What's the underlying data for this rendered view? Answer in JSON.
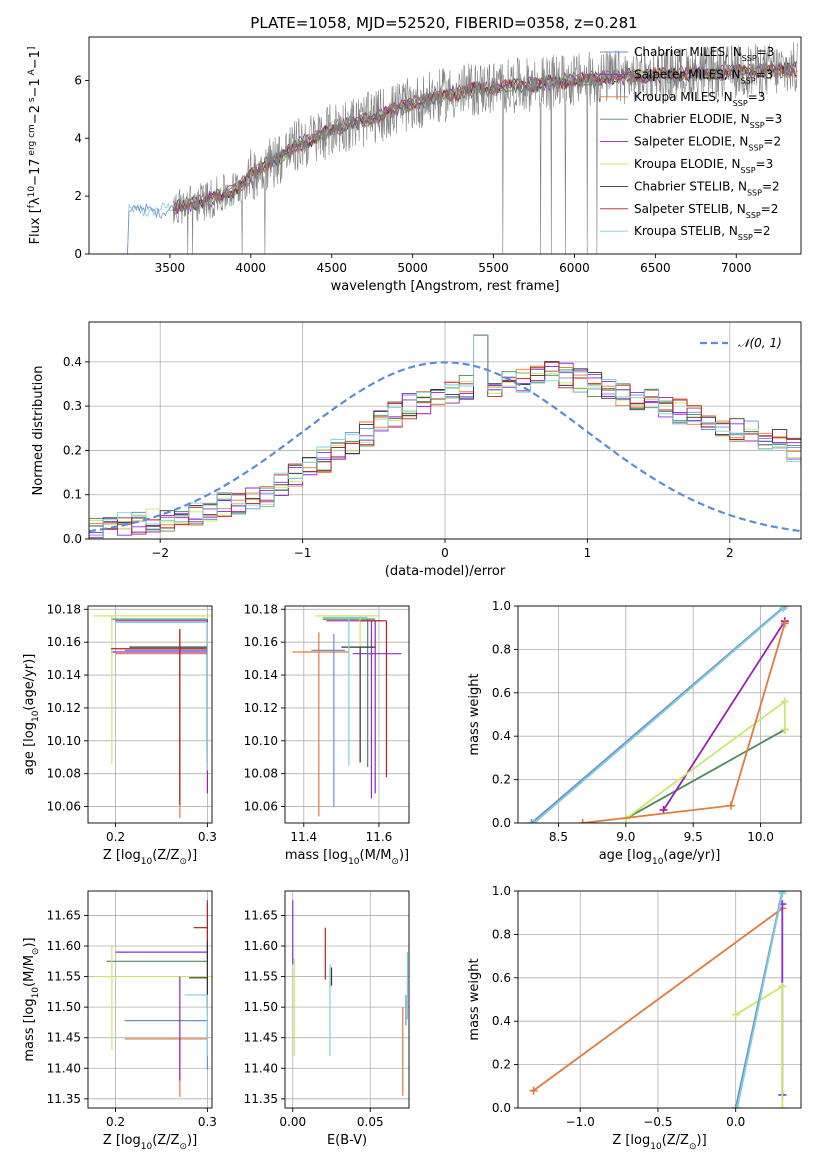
{
  "figure_title": "PLATE=1058, MJD=52520, FIBERID=0358, z=0.281",
  "colors": {
    "s0": "#6b8fd6",
    "s1": "#8a2be2",
    "s2": "#e07b39",
    "s3": "#4f8a5b",
    "s4": "#9b1fb0",
    "s5": "#c8e86a",
    "s6": "#333333",
    "s7": "#b22222",
    "s8": "#7ed0d6",
    "spectrum": "#808080",
    "gauss": "#5b8ed6"
  },
  "chart_data": [
    {
      "id": "spectrum",
      "type": "line",
      "title": "PLATE=1058, MJD=52520, FIBERID=0358, z=0.281",
      "xlabel": "wavelength [Angstrom, rest frame]",
      "ylabel_parts": [
        "Flux [",
        "f",
        "λ",
        "10",
        "−17",
        " erg cm",
        "−2",
        " s",
        "−1",
        " A",
        "−1",
        "]"
      ],
      "xlim": [
        3000,
        7400
      ],
      "ylim": [
        0,
        7.5
      ],
      "xticks": [
        "3500",
        "4000",
        "4500",
        "5000",
        "5500",
        "6000",
        "6500",
        "7000"
      ],
      "xtick_values": [
        3500,
        4000,
        4500,
        5000,
        5500,
        6000,
        6500,
        7000
      ],
      "yticks": [
        "0",
        "2",
        "4",
        "6"
      ],
      "ytick_values": [
        0,
        2,
        4,
        6
      ],
      "grid": false,
      "legend_position": "top-right",
      "legend": [
        {
          "label": "Chabrier MILES, N",
          "sub": "SSP",
          "suffix": "=3",
          "color": "#6b8fd6"
        },
        {
          "label": "Salpeter MILES, N",
          "sub": "SSP",
          "suffix": "=3",
          "color": "#8a2be2"
        },
        {
          "label": "Kroupa MILES, N",
          "sub": "SSP",
          "suffix": "=3",
          "color": "#e07b39"
        },
        {
          "label": "Chabrier ELODIE, N",
          "sub": "SSP",
          "suffix": "=3",
          "color": "#4f8a5b"
        },
        {
          "label": "Salpeter ELODIE, N",
          "sub": "SSP",
          "suffix": "=2",
          "color": "#9b1fb0"
        },
        {
          "label": "Kroupa ELODIE, N",
          "sub": "SSP",
          "suffix": "=3",
          "color": "#c8e86a"
        },
        {
          "label": "Chabrier STELIB, N",
          "sub": "SSP",
          "suffix": "=2",
          "color": "#333333"
        },
        {
          "label": "Salpeter STELIB, N",
          "sub": "SSP",
          "suffix": "=2",
          "color": "#b22222"
        },
        {
          "label": "Kroupa STELIB, N",
          "sub": "SSP",
          "suffix": "=2",
          "color": "#7ed0d6"
        }
      ],
      "trend": {
        "x": [
          3200,
          3250,
          3300,
          3400,
          3500,
          3600,
          3700,
          3800,
          3900,
          4000,
          4100,
          4200,
          4300,
          4400,
          4500,
          4600,
          4700,
          4800,
          4900,
          5000,
          5200,
          5400,
          5600,
          5800,
          6000,
          6200,
          6400,
          6600,
          6800,
          7000,
          7200,
          7400
        ],
        "y": [
          1.3,
          1.4,
          1.5,
          1.55,
          1.5,
          1.7,
          1.8,
          2.0,
          2.2,
          2.7,
          3.1,
          3.4,
          3.8,
          4.0,
          4.3,
          4.5,
          4.6,
          4.8,
          5.0,
          5.2,
          5.5,
          5.7,
          5.8,
          5.9,
          6.0,
          6.1,
          6.15,
          6.2,
          6.25,
          6.3,
          6.35,
          6.4
        ]
      }
    },
    {
      "id": "residuals",
      "type": "histogram",
      "xlabel": "(data-model)/error",
      "ylabel": "Normed distribution",
      "xlim": [
        -2.5,
        2.5
      ],
      "ylim": [
        0,
        0.49
      ],
      "xticks": [
        "−2",
        "−1",
        "0",
        "1",
        "2"
      ],
      "xtick_values": [
        -2,
        -1,
        0,
        1,
        2
      ],
      "yticks": [
        "0.0",
        "0.1",
        "0.2",
        "0.3",
        "0.4"
      ],
      "ytick_values": [
        0,
        0.1,
        0.2,
        0.3,
        0.4
      ],
      "grid": true,
      "legend_position": "top-right",
      "gauss_label": "𝒩(0, 1)",
      "bin_width": 0.1,
      "bin_start": -2.5,
      "base_heights": [
        0.02,
        0.025,
        0.03,
        0.035,
        0.04,
        0.045,
        0.05,
        0.06,
        0.07,
        0.08,
        0.085,
        0.09,
        0.1,
        0.12,
        0.14,
        0.16,
        0.18,
        0.2,
        0.22,
        0.24,
        0.26,
        0.28,
        0.3,
        0.31,
        0.32,
        0.33,
        0.34,
        0.35,
        0.35,
        0.36,
        0.36,
        0.37,
        0.38,
        0.37,
        0.36,
        0.35,
        0.34,
        0.33,
        0.32,
        0.31,
        0.3,
        0.29,
        0.28,
        0.27,
        0.26,
        0.25,
        0.24,
        0.23,
        0.22,
        0.2,
        0.19,
        0.18,
        0.17,
        0.16,
        0.15,
        0.14,
        0.13,
        0.12,
        0.11,
        0.1,
        0.095,
        0.09,
        0.085,
        0.08,
        0.075,
        0.07,
        0.065,
        0.06,
        0.055,
        0.05
      ]
    },
    {
      "id": "age-vs-Z",
      "type": "errorbar",
      "xlabel_parts": [
        "Z [log",
        "10",
        "(Z/Z",
        "⊙",
        ")]"
      ],
      "ylabel_parts": [
        "age  [log",
        "10",
        "(age/yr)]"
      ],
      "xlim": [
        0.17,
        0.305
      ],
      "ylim": [
        10.05,
        10.182
      ],
      "xticks": [
        "0.2",
        "0.3"
      ],
      "xtick_values": [
        0.2,
        0.3
      ],
      "yticks": [
        "10.06",
        "10.08",
        "10.10",
        "10.12",
        "10.14",
        "10.16",
        "10.18"
      ],
      "ytick_values": [
        10.06,
        10.08,
        10.1,
        10.12,
        10.14,
        10.16,
        10.18
      ],
      "grid": true,
      "points": [
        {
          "x": 0.3,
          "y": 10.155,
          "xerr": [
            0.09,
            0.0
          ],
          "yerr": [
            0.06,
            0.0
          ],
          "c": "s0"
        },
        {
          "x": 0.27,
          "y": 10.154,
          "xerr": [
            0.075,
            0.03
          ],
          "yerr": [
            0.09,
            0.012
          ],
          "c": "s1"
        },
        {
          "x": 0.27,
          "y": 10.153,
          "xerr": [
            0.07,
            0.03
          ],
          "yerr": [
            0.1,
            0.015
          ],
          "c": "s2"
        },
        {
          "x": 0.3,
          "y": 10.174,
          "xerr": [
            0.105,
            0.0
          ],
          "yerr": [
            0.08,
            0.0
          ],
          "c": "s3"
        },
        {
          "x": 0.3,
          "y": 10.173,
          "xerr": [
            0.1,
            0.0
          ],
          "yerr": [
            0.105,
            0.0
          ],
          "c": "s4"
        },
        {
          "x": 0.196,
          "y": 10.176,
          "xerr": [
            0.02,
            0.11
          ],
          "yerr": [
            0.09,
            0.0
          ],
          "c": "s5"
        },
        {
          "x": 0.3,
          "y": 10.157,
          "xerr": [
            0.085,
            0.0
          ],
          "yerr": [
            0.07,
            0.0
          ],
          "c": "s6"
        },
        {
          "x": 0.27,
          "y": 10.156,
          "xerr": [
            0.075,
            0.03
          ],
          "yerr": [
            0.095,
            0.012
          ],
          "c": "s7"
        },
        {
          "x": 0.3,
          "y": 10.172,
          "xerr": [
            0.1,
            0.0
          ],
          "yerr": [
            0.09,
            0.0
          ],
          "c": "s8"
        }
      ]
    },
    {
      "id": "age-vs-mass",
      "type": "errorbar",
      "xlabel_parts": [
        "mass [log",
        "10",
        "(M/M",
        "⊙",
        ")]"
      ],
      "xlim": [
        11.35,
        11.68
      ],
      "ylim": [
        10.05,
        10.182
      ],
      "xticks": [
        "11.4",
        "11.6"
      ],
      "xtick_values": [
        11.4,
        11.6
      ],
      "yticks": [
        "10.06",
        "10.08",
        "10.10",
        "10.12",
        "10.14",
        "10.16",
        "10.18"
      ],
      "ytick_values": [
        10.06,
        10.08,
        10.1,
        10.12,
        10.14,
        10.16,
        10.18
      ],
      "grid": true,
      "points": [
        {
          "x": 11.48,
          "y": 10.155,
          "xerr": [
            0.06,
            0.03
          ],
          "yerr": [
            0.095,
            0.01
          ],
          "c": "s0"
        },
        {
          "x": 11.58,
          "y": 10.153,
          "xerr": [
            0.05,
            0.08
          ],
          "yerr": [
            0.088,
            0.02
          ],
          "c": "s1"
        },
        {
          "x": 11.44,
          "y": 10.154,
          "xerr": [
            0.07,
            0.08
          ],
          "yerr": [
            0.1,
            0.012
          ],
          "c": "s2"
        },
        {
          "x": 11.57,
          "y": 10.174,
          "xerr": [
            0.12,
            0.02
          ],
          "yerr": [
            0.09,
            0.0
          ],
          "c": "s3"
        },
        {
          "x": 11.59,
          "y": 10.173,
          "xerr": [
            0.13,
            0.02
          ],
          "yerr": [
            0.105,
            0.0
          ],
          "c": "s4"
        },
        {
          "x": 11.55,
          "y": 10.176,
          "xerr": [
            0.12,
            0.05
          ],
          "yerr": [
            0.09,
            0.0
          ],
          "c": "s5"
        },
        {
          "x": 11.55,
          "y": 10.157,
          "xerr": [
            0.05,
            0.04
          ],
          "yerr": [
            0.07,
            0.0
          ],
          "c": "s6"
        },
        {
          "x": 11.62,
          "y": 10.173,
          "xerr": [
            0.07,
            0.0
          ],
          "yerr": [
            0.095,
            0.0
          ],
          "c": "s7"
        },
        {
          "x": 11.52,
          "y": 10.175,
          "xerr": [
            0.07,
            0.05
          ],
          "yerr": [
            0.09,
            0.0
          ],
          "c": "s8"
        }
      ]
    },
    {
      "id": "weight-vs-age",
      "type": "line",
      "xlabel_parts": [
        "age  [log",
        "10",
        "(age/yr)]"
      ],
      "ylabel": "mass weight",
      "xlim": [
        8.2,
        10.3
      ],
      "ylim": [
        0,
        1.0
      ],
      "xticks": [
        "8.5",
        "9.0",
        "9.5",
        "10.0"
      ],
      "xtick_values": [
        8.5,
        9.0,
        9.5,
        10.0
      ],
      "yticks": [
        "0.0",
        "0.2",
        "0.4",
        "0.6",
        "0.8",
        "1.0"
      ],
      "ytick_values": [
        0,
        0.2,
        0.4,
        0.6,
        0.8,
        1.0
      ],
      "grid": true,
      "series": [
        {
          "c": "s0",
          "x": [
            8.3,
            10.18
          ],
          "y": [
            0.0,
            1.0
          ]
        },
        {
          "c": "s3",
          "x": [
            9.0,
            10.18
          ],
          "y": [
            0.02,
            0.43
          ]
        },
        {
          "c": "s4",
          "x": [
            9.28,
            10.18
          ],
          "y": [
            0.06,
            0.93
          ]
        },
        {
          "c": "s5",
          "x": [
            9.0,
            10.18,
            10.18
          ],
          "y": [
            0.02,
            0.56,
            0.43
          ]
        },
        {
          "c": "s2",
          "x": [
            8.68,
            9.78,
            10.18
          ],
          "y": [
            0.0,
            0.08,
            0.92
          ]
        },
        {
          "c": "s8",
          "x": [
            8.32,
            10.17
          ],
          "y": [
            0.0,
            0.99
          ]
        }
      ]
    },
    {
      "id": "mass-vs-Z",
      "type": "errorbar",
      "xlabel_parts": [
        "Z [log",
        "10",
        "(Z/Z",
        "⊙",
        ")]"
      ],
      "ylabel_parts": [
        "mass [log",
        "10",
        "(M/M",
        "⊙",
        ")]"
      ],
      "xlim": [
        0.17,
        0.305
      ],
      "ylim": [
        11.335,
        11.69
      ],
      "xticks": [
        "0.2",
        "0.3"
      ],
      "xtick_values": [
        0.2,
        0.3
      ],
      "yticks": [
        "11.35",
        "11.40",
        "11.45",
        "11.50",
        "11.55",
        "11.60",
        "11.65"
      ],
      "ytick_values": [
        11.35,
        11.4,
        11.45,
        11.5,
        11.55,
        11.6,
        11.65
      ],
      "grid": true,
      "points": [
        {
          "x": 0.3,
          "y": 11.478,
          "xerr": [
            0.09,
            0.0
          ],
          "yerr": [
            0.08,
            0.0
          ],
          "c": "s0"
        },
        {
          "x": 0.3,
          "y": 11.59,
          "xerr": [
            0.1,
            0.0
          ],
          "yerr": [
            0.01,
            0.085
          ],
          "c": "s1"
        },
        {
          "x": 0.27,
          "y": 11.448,
          "xerr": [
            0.06,
            0.03
          ],
          "yerr": [
            0.095,
            0.0
          ],
          "c": "s2"
        },
        {
          "x": 0.3,
          "y": 11.575,
          "xerr": [
            0.11,
            0.0
          ],
          "yerr": [
            0.09,
            0.0
          ],
          "c": "s3"
        },
        {
          "x": 0.3,
          "y": 11.63,
          "xerr": [
            0.015,
            0.0
          ],
          "yerr": [
            0.05,
            0.04
          ],
          "c": "s7"
        },
        {
          "x": 0.196,
          "y": 11.55,
          "xerr": [
            0.02,
            0.11
          ],
          "yerr": [
            0.12,
            0.05
          ],
          "c": "s5"
        },
        {
          "x": 0.3,
          "y": 11.548,
          "xerr": [
            0.02,
            0.0
          ],
          "yerr": [
            0.05,
            0.06
          ],
          "c": "s6"
        },
        {
          "x": 0.3,
          "y": 11.52,
          "xerr": [
            0.025,
            0.0
          ],
          "yerr": [
            0.1,
            0.0
          ],
          "c": "s8"
        },
        {
          "x": 0.27,
          "y": 11.5,
          "xerr": [
            0.0,
            0.0
          ],
          "yerr": [
            0.12,
            0.05
          ],
          "c": "s4"
        }
      ]
    },
    {
      "id": "mass-vs-EBV",
      "type": "errorbar",
      "xlabel": "E(B-V)",
      "xlim": [
        -0.005,
        0.075
      ],
      "ylim": [
        11.335,
        11.69
      ],
      "xticks": [
        "0.00",
        "0.05"
      ],
      "xtick_values": [
        0.0,
        0.05
      ],
      "yticks": [
        "11.35",
        "11.40",
        "11.45",
        "11.50",
        "11.55",
        "11.60",
        "11.65"
      ],
      "ytick_values": [
        11.35,
        11.4,
        11.45,
        11.5,
        11.55,
        11.6,
        11.65
      ],
      "grid": true,
      "points": [
        {
          "x": 0.0,
          "y": 11.6,
          "xerr": [
            0,
            0
          ],
          "yerr": [
            0.03,
            0.075
          ],
          "c": "s1"
        },
        {
          "x": 0.001,
          "y": 11.5,
          "xerr": [
            0,
            0
          ],
          "yerr": [
            0.08,
            0.08
          ],
          "c": "s5"
        },
        {
          "x": 0.021,
          "y": 11.575,
          "xerr": [
            0,
            0
          ],
          "yerr": [
            0.03,
            0.055
          ],
          "c": "s7"
        },
        {
          "x": 0.024,
          "y": 11.55,
          "xerr": [
            0,
            0
          ],
          "yerr": [
            0.13,
            0.02
          ],
          "c": "s8"
        },
        {
          "x": 0.025,
          "y": 11.545,
          "xerr": [
            0,
            0
          ],
          "yerr": [
            0.01,
            0.02
          ],
          "c": "s6"
        },
        {
          "x": 0.071,
          "y": 11.45,
          "xerr": [
            0,
            0
          ],
          "yerr": [
            0.095,
            0.05
          ],
          "c": "s2"
        },
        {
          "x": 0.073,
          "y": 11.5,
          "xerr": [
            0,
            0
          ],
          "yerr": [
            0.03,
            0.02
          ],
          "c": "s0"
        },
        {
          "x": 0.074,
          "y": 11.55,
          "xerr": [
            0,
            0
          ],
          "yerr": [
            0.07,
            0.04
          ],
          "c": "s8"
        }
      ]
    },
    {
      "id": "weight-vs-Z",
      "type": "line",
      "xlabel_parts": [
        "Z [log",
        "10",
        "(Z/Z",
        "⊙",
        ")]"
      ],
      "ylabel": "mass weight",
      "xlim": [
        -1.4,
        0.42
      ],
      "ylim": [
        0,
        1.0
      ],
      "xticks": [
        "−1.0",
        "−0.5",
        "0.0"
      ],
      "xtick_values": [
        -1.0,
        -0.5,
        0.0
      ],
      "yticks": [
        "0.0",
        "0.2",
        "0.4",
        "0.6",
        "0.8",
        "1.0"
      ],
      "ytick_values": [
        0,
        0.2,
        0.4,
        0.6,
        0.8,
        1.0
      ],
      "grid": true,
      "series": [
        {
          "c": "s2",
          "x": [
            -1.3,
            0.3
          ],
          "y": [
            0.08,
            0.92
          ]
        },
        {
          "c": "s1",
          "x": [
            0.3,
            0.3
          ],
          "y": [
            0.06,
            0.94
          ]
        },
        {
          "c": "s5",
          "x": [
            0.0,
            0.3,
            0.3
          ],
          "y": [
            0.43,
            0.56,
            0.0
          ]
        },
        {
          "c": "s0",
          "x": [
            0.0,
            0.3
          ],
          "y": [
            0.0,
            1.0
          ]
        },
        {
          "c": "s8",
          "x": [
            0.01,
            0.3
          ],
          "y": [
            0.0,
            0.99
          ]
        }
      ]
    }
  ]
}
